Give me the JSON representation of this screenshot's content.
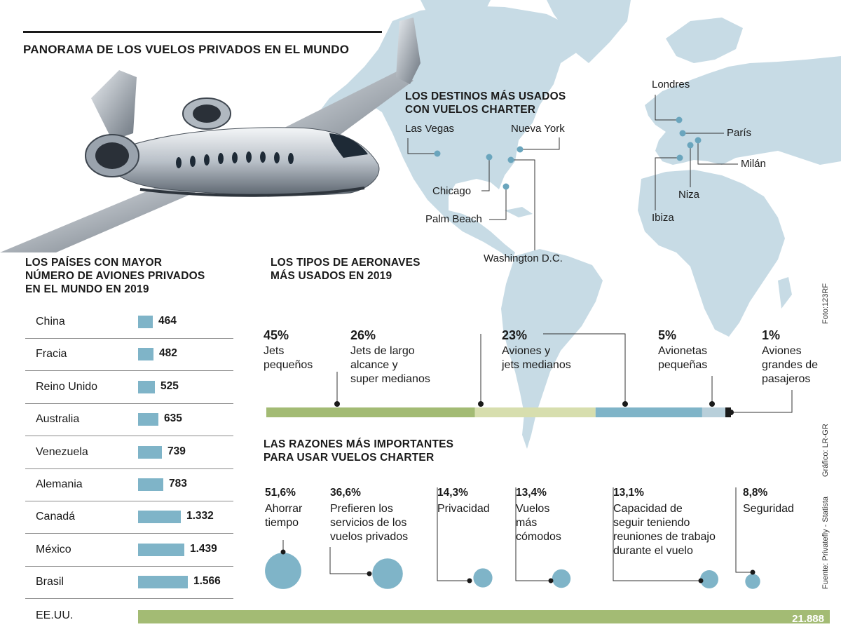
{
  "title": "PANORAMA DE  LOS VUELOS PRIVADOS EN EL MUNDO",
  "photo_credit": "Foto:123RF",
  "graphic_credit": "Gráfico: LR-GR",
  "source_credit": "Fuente: Privatefly - Statista",
  "colors": {
    "map": "#c7dbe5",
    "bar_blue": "#7fb4c8",
    "green": "#a3bb74",
    "light_green": "#d7deae",
    "light_blue": "#b8cfda",
    "dark": "#1a1a1a"
  },
  "destinations": {
    "title_lines": [
      "LOS DESTINOS MÁS USADOS",
      "CON VUELOS CHARTER"
    ],
    "places": [
      {
        "name": "Las Vegas"
      },
      {
        "name": "Nueva York"
      },
      {
        "name": "Chicago"
      },
      {
        "name": "Palm Beach"
      },
      {
        "name": "Washington D.C."
      },
      {
        "name": "Londres"
      },
      {
        "name": "París"
      },
      {
        "name": "Milán"
      },
      {
        "name": "Niza"
      },
      {
        "name": "Ibiza"
      }
    ]
  },
  "chart_data": [
    {
      "type": "bar",
      "orientation": "horizontal",
      "title_lines": [
        "LOS PAÍSES CON MAYOR",
        "NÚMERO DE AVIONES PRIVADOS",
        "EN EL MUNDO EN 2019"
      ],
      "categories": [
        "China",
        "Fracia",
        "Reino Unido",
        "Australia",
        "Venezuela",
        "Alemania",
        "Canadá",
        "México",
        "Brasil",
        "EE.UU."
      ],
      "values": [
        464,
        482,
        525,
        635,
        739,
        783,
        1332,
        1439,
        1566,
        21888
      ],
      "value_labels": [
        "464",
        "482",
        "525",
        "635",
        "739",
        "783",
        "1.332",
        "1.439",
        "1.566",
        "21.888"
      ]
    },
    {
      "type": "bar",
      "orientation": "stacked-100",
      "title_lines": [
        "LOS TIPOS DE AERONAVES",
        "MÁS USADOS EN 2019"
      ],
      "segments": [
        {
          "pct": "45%",
          "value": 45,
          "label": [
            "Jets",
            "pequeños"
          ],
          "color": "#a3bb74"
        },
        {
          "pct": "26%",
          "value": 26,
          "label": [
            "Jets de largo",
            "alcance y",
            "super medianos"
          ],
          "color": "#d7deae"
        },
        {
          "pct": "23%",
          "value": 23,
          "label": [
            "Aviones y",
            "jets medianos"
          ],
          "color": "#7fb4c8"
        },
        {
          "pct": "5%",
          "value": 5,
          "label": [
            "Avionetas",
            "pequeñas"
          ],
          "color": "#b8cfda"
        },
        {
          "pct": "1%",
          "value": 1,
          "label": [
            "Aviones",
            "grandes de",
            "pasajeros"
          ],
          "color": "#1a1a1a"
        }
      ]
    },
    {
      "type": "scatter",
      "variant": "bubbles",
      "title_lines": [
        "LAS RAZONES MÁS IMPORTANTES",
        "PARA USAR VUELOS CHARTER"
      ],
      "items": [
        {
          "pct": "51,6%",
          "value": 51.6,
          "label": [
            "Ahorrar",
            "tiempo"
          ]
        },
        {
          "pct": "36,6%",
          "value": 36.6,
          "label": [
            "Prefieren los",
            "servicios de los",
            "vuelos privados"
          ]
        },
        {
          "pct": "14,3%",
          "value": 14.3,
          "label": [
            "Privacidad"
          ]
        },
        {
          "pct": "13,4%",
          "value": 13.4,
          "label": [
            "Vuelos",
            "más",
            "cómodos"
          ]
        },
        {
          "pct": "13,1%",
          "value": 13.1,
          "label": [
            "Capacidad de",
            "seguir teniendo",
            "reuniones de trabajo",
            "durante el vuelo"
          ]
        },
        {
          "pct": "8,8%",
          "value": 8.8,
          "label": [
            "Seguridad"
          ]
        }
      ]
    }
  ]
}
